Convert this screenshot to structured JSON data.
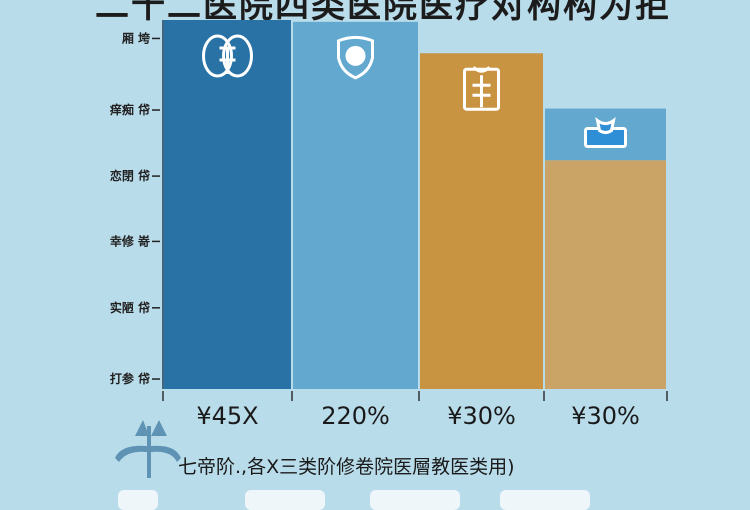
{
  "title": "二十二医院四类医院医疗对构构为拒",
  "footnote": "七帝阶.,各X三类阶修卷院医層教医类用)",
  "colors": {
    "background": "#b9dceb",
    "bar_dark_blue": "#2872a6",
    "bar_light_blue": "#63a9cf",
    "bar_orange": "#c99442",
    "bar_tan": "#c9a466",
    "icon_stroke": "#ffffff",
    "logo": "#5f93b4"
  },
  "chart_data": {
    "type": "bar",
    "title": "二十二医院四类医院医疗对构构为拒",
    "categories": [
      "¥45X",
      "220%",
      "¥30%",
      "¥30%"
    ],
    "series": [
      {
        "values": [
          100,
          99.5,
          91,
          62
        ]
      },
      {
        "values": [
          0,
          0,
          0,
          14
        ]
      }
    ],
    "stacked": true,
    "bar_icons": [
      "lungs-icon",
      "shield-icon",
      "medical-device-icon",
      "doctor-icon"
    ],
    "ylim": [
      0,
      100
    ],
    "yticks": [
      {
        "value": 95,
        "label": "厢 垮"
      },
      {
        "value": 75.6,
        "label": "痒痴 帒"
      },
      {
        "value": 57.7,
        "label": "恋閉 帒"
      },
      {
        "value": 40,
        "label": "幸修 嵜"
      },
      {
        "value": 22,
        "label": "实陋 帒"
      },
      {
        "value": 2.7,
        "label": "打参 帒"
      }
    ],
    "grid": false,
    "legend": "none"
  }
}
